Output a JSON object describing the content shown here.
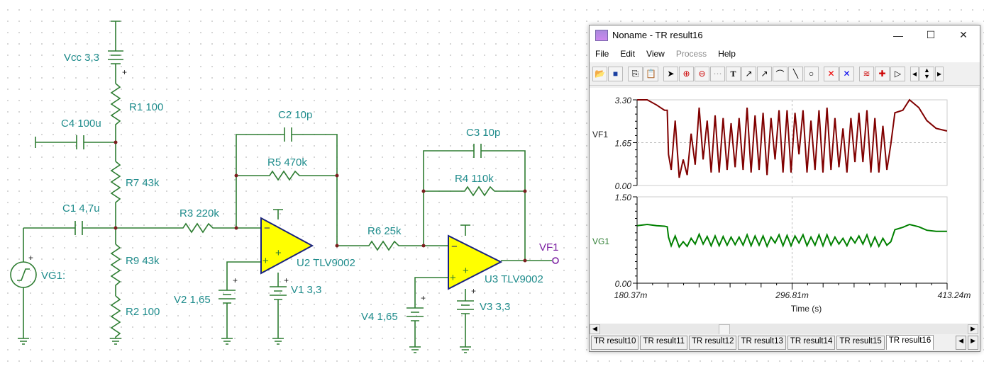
{
  "schematic": {
    "labels": {
      "vcc": "Vcc 3,3",
      "r1": "R1 100",
      "c4": "C4 100u",
      "r7": "R7 43k",
      "c1": "C1 4,7u",
      "vg1": "VG1:",
      "r9": "R9 43k",
      "r2": "R2 100",
      "r3": "R3 220k",
      "c2": "C2 10p",
      "r5": "R5 470k",
      "u2": "U2 TLV9002",
      "v1": "V1 3,3",
      "v2": "V2 1,65",
      "r6": "R6 25k",
      "c3": "C3 10p",
      "r4": "R4 110k",
      "u3": "U3 TLV9002",
      "v3": "V3 3,3",
      "v4": "V4 1,65",
      "vf1": "VF1",
      "plus": "+",
      "minus": "−"
    },
    "colors": {
      "wire": "#2e7d32",
      "label": "#1f8c8c",
      "opamp_fill": "#ffff00",
      "opamp_stroke": "#1a237e",
      "pin": "#d32f2f",
      "probe": "#7b1fa2"
    }
  },
  "window": {
    "title": "Noname - TR result16",
    "controls": {
      "minimize": "—",
      "maximize": "☐",
      "close": "✕"
    },
    "menu": [
      "File",
      "Edit",
      "View",
      "Process",
      "Help"
    ],
    "menu_disabled": [
      "Process"
    ],
    "toolbar": [
      "open-icon",
      "save-icon",
      "copy-icon",
      "paste-icon",
      "pointer-icon",
      "zoom-in-icon",
      "zoom-100-icon",
      "grid-icon",
      "text-icon",
      "label-curve-icon",
      "label-query-icon",
      "formula-icon",
      "line-icon",
      "circle-icon",
      "cursor-a-icon",
      "cursor-b-icon",
      "add-curve-icon",
      "add-probe-icon",
      "play-icon",
      "scroll-left-icon",
      "scroll-up-icon",
      "scroll-down-icon",
      "scroll-right-icon"
    ],
    "tabs": [
      "TR result10",
      "TR result11",
      "TR result12",
      "TR result13",
      "TR result14",
      "TR result15",
      "TR result16"
    ],
    "active_tab": "TR result16"
  },
  "chart_data": [
    {
      "type": "line",
      "series": [
        {
          "name": "VF1",
          "color": "#800000"
        }
      ],
      "ylim": [
        0,
        3.3
      ],
      "yticks": [
        "3.30",
        "1.65",
        "0.00"
      ],
      "x": [
        0.1804,
        0.188,
        0.195,
        0.201,
        0.203,
        0.204,
        0.206,
        0.209,
        0.212,
        0.215,
        0.218,
        0.221,
        0.224,
        0.227,
        0.23,
        0.233,
        0.236,
        0.239,
        0.242,
        0.245,
        0.248,
        0.251,
        0.254,
        0.257,
        0.26,
        0.263,
        0.266,
        0.269,
        0.272,
        0.275,
        0.278,
        0.281,
        0.284,
        0.287,
        0.29,
        0.293,
        0.296,
        0.299,
        0.302,
        0.305,
        0.308,
        0.311,
        0.314,
        0.317,
        0.32,
        0.323,
        0.326,
        0.329,
        0.332,
        0.335,
        0.338,
        0.341,
        0.344,
        0.347,
        0.35,
        0.353,
        0.356,
        0.359,
        0.362,
        0.365,
        0.368,
        0.371,
        0.374,
        0.38,
        0.385,
        0.392,
        0.398,
        0.405,
        0.4132
      ],
      "values": [
        3.3,
        3.3,
        3.1,
        2.9,
        2.9,
        1.2,
        0.6,
        2.5,
        0.3,
        1.0,
        0.4,
        2.0,
        0.8,
        3.0,
        1.0,
        2.5,
        0.5,
        2.7,
        0.5,
        2.6,
        0.6,
        2.4,
        0.7,
        2.6,
        0.6,
        3.0,
        0.5,
        2.7,
        0.6,
        2.8,
        0.4,
        2.6,
        1.0,
        2.9,
        0.5,
        2.9,
        0.5,
        2.8,
        1.2,
        2.9,
        0.5,
        2.5,
        0.6,
        2.9,
        0.5,
        3.0,
        0.6,
        2.6,
        0.7,
        2.2,
        0.5,
        2.6,
        0.9,
        2.8,
        0.9,
        2.9,
        0.5,
        2.6,
        0.5,
        2.3,
        0.6,
        1.6,
        2.8,
        2.9,
        3.3,
        3.0,
        2.5,
        2.2,
        2.1
      ]
    },
    {
      "type": "line",
      "series": [
        {
          "name": "VG1",
          "color": "#008000"
        }
      ],
      "ylim": [
        0,
        1.5
      ],
      "yticks": [
        "1.50",
        "0.00"
      ],
      "xlabel": "Time (s)",
      "xticks": [
        "180.37m",
        "296.81m",
        "413.24m"
      ],
      "xlim": [
        0.18037,
        0.41324
      ],
      "x": [
        0.1804,
        0.188,
        0.195,
        0.201,
        0.203,
        0.204,
        0.206,
        0.209,
        0.212,
        0.215,
        0.218,
        0.221,
        0.224,
        0.227,
        0.23,
        0.233,
        0.236,
        0.239,
        0.242,
        0.245,
        0.248,
        0.251,
        0.254,
        0.257,
        0.26,
        0.263,
        0.266,
        0.269,
        0.272,
        0.275,
        0.278,
        0.281,
        0.284,
        0.287,
        0.29,
        0.293,
        0.296,
        0.299,
        0.302,
        0.305,
        0.308,
        0.311,
        0.314,
        0.317,
        0.32,
        0.323,
        0.326,
        0.329,
        0.332,
        0.335,
        0.338,
        0.341,
        0.344,
        0.347,
        0.35,
        0.353,
        0.356,
        0.359,
        0.362,
        0.365,
        0.368,
        0.371,
        0.374,
        0.38,
        0.385,
        0.392,
        0.398,
        0.405,
        0.4132
      ],
      "values": [
        1.0,
        1.02,
        1.0,
        0.99,
        0.98,
        0.8,
        0.65,
        0.82,
        0.63,
        0.72,
        0.64,
        0.78,
        0.68,
        0.85,
        0.68,
        0.81,
        0.65,
        0.82,
        0.65,
        0.81,
        0.66,
        0.8,
        0.67,
        0.8,
        0.66,
        0.84,
        0.65,
        0.82,
        0.66,
        0.82,
        0.64,
        0.8,
        0.7,
        0.84,
        0.65,
        0.83,
        0.65,
        0.82,
        0.7,
        0.84,
        0.65,
        0.8,
        0.66,
        0.84,
        0.65,
        0.84,
        0.66,
        0.8,
        0.68,
        0.78,
        0.65,
        0.8,
        0.7,
        0.82,
        0.68,
        0.84,
        0.64,
        0.8,
        0.64,
        0.78,
        0.66,
        0.72,
        0.93,
        0.97,
        1.02,
        0.98,
        0.92,
        0.9,
        0.9
      ]
    }
  ]
}
